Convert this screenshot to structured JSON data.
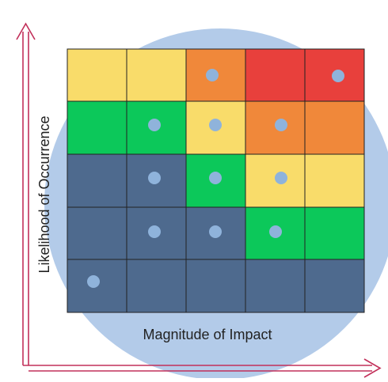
{
  "y_axis_label": "Likelihood of Occurrence",
  "x_axis_label": "Magnitude of Impact"
}
